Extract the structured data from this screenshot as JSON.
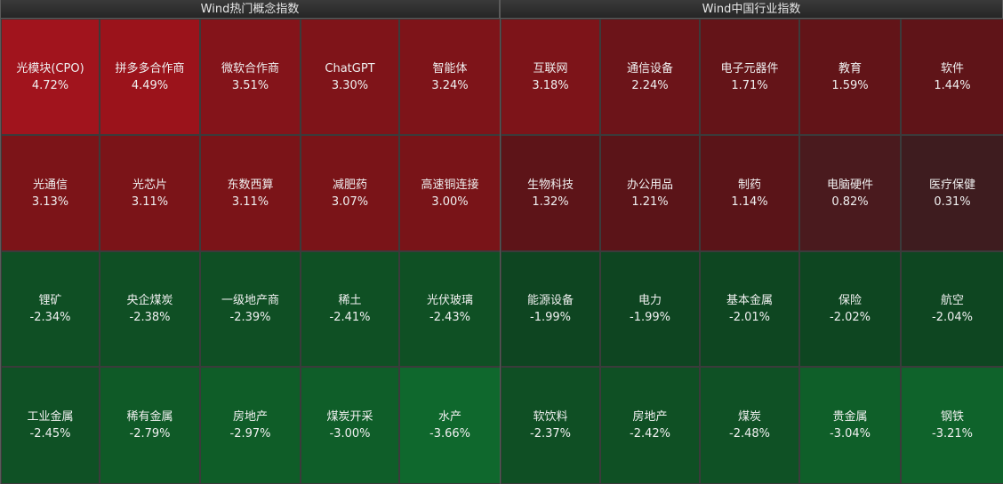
{
  "panels": [
    {
      "id": "left",
      "title": "Wind热门概念指数",
      "rows": [
        [
          {
            "name": "光模块(CPO)",
            "pct": "4.72%",
            "color": "#a1141d"
          },
          {
            "name": "拼多多合作商",
            "pct": "4.49%",
            "color": "#9b131b"
          },
          {
            "name": "微软合作商",
            "pct": "3.51%",
            "color": "#84141a"
          },
          {
            "name": "ChatGPT",
            "pct": "3.30%",
            "color": "#7f1419"
          },
          {
            "name": "智能体",
            "pct": "3.24%",
            "color": "#7e1419"
          }
        ],
        [
          {
            "name": "光通信",
            "pct": "3.13%",
            "color": "#7c1418"
          },
          {
            "name": "光芯片",
            "pct": "3.11%",
            "color": "#7b1418"
          },
          {
            "name": "东数西算",
            "pct": "3.11%",
            "color": "#7b1418"
          },
          {
            "name": "减肥药",
            "pct": "3.07%",
            "color": "#7a1418"
          },
          {
            "name": "高速铜连接",
            "pct": "3.00%",
            "color": "#791418"
          }
        ],
        [
          {
            "name": "锂矿",
            "pct": "-2.34%",
            "color": "#0f4f24"
          },
          {
            "name": "央企煤炭",
            "pct": "-2.38%",
            "color": "#0f4f24"
          },
          {
            "name": "一级地产商",
            "pct": "-2.39%",
            "color": "#0f4f24"
          },
          {
            "name": "稀土",
            "pct": "-2.41%",
            "color": "#0f5024"
          },
          {
            "name": "光伏玻璃",
            "pct": "-2.43%",
            "color": "#0f5024"
          }
        ],
        [
          {
            "name": "工业金属",
            "pct": "-2.45%",
            "color": "#0f5125"
          },
          {
            "name": "稀有金属",
            "pct": "-2.79%",
            "color": "#0f5a27"
          },
          {
            "name": "房地产",
            "pct": "-2.97%",
            "color": "#0f5d28"
          },
          {
            "name": "煤炭开采",
            "pct": "-3.00%",
            "color": "#0f5e29"
          },
          {
            "name": "水产",
            "pct": "-3.66%",
            "color": "#0f682d"
          }
        ]
      ]
    },
    {
      "id": "right",
      "title": "Wind中国行业指数",
      "rows": [
        [
          {
            "name": "互联网",
            "pct": "3.18%",
            "color": "#7d1419"
          },
          {
            "name": "通信设备",
            "pct": "2.24%",
            "color": "#6c1419"
          },
          {
            "name": "电子元器件",
            "pct": "1.71%",
            "color": "#641418"
          },
          {
            "name": "教育",
            "pct": "1.59%",
            "color": "#621418"
          },
          {
            "name": "软件",
            "pct": "1.44%",
            "color": "#5f1418"
          }
        ],
        [
          {
            "name": "生物科技",
            "pct": "1.32%",
            "color": "#5d1418"
          },
          {
            "name": "办公用品",
            "pct": "1.21%",
            "color": "#5b1418"
          },
          {
            "name": "制药",
            "pct": "1.14%",
            "color": "#5a1418"
          },
          {
            "name": "电脑硬件",
            "pct": "0.82%",
            "color": "#4a1a1e"
          },
          {
            "name": "医疗保健",
            "pct": "0.31%",
            "color": "#3e1c1f"
          }
        ],
        [
          {
            "name": "能源设备",
            "pct": "-1.99%",
            "color": "#0e4521"
          },
          {
            "name": "电力",
            "pct": "-1.99%",
            "color": "#0e4521"
          },
          {
            "name": "基本金属",
            "pct": "-2.01%",
            "color": "#0e4621"
          },
          {
            "name": "保险",
            "pct": "-2.02%",
            "color": "#0e4621"
          },
          {
            "name": "航空",
            "pct": "-2.04%",
            "color": "#0e4621"
          }
        ],
        [
          {
            "name": "软饮料",
            "pct": "-2.37%",
            "color": "#0f4f24"
          },
          {
            "name": "房地产",
            "pct": "-2.42%",
            "color": "#0f5024"
          },
          {
            "name": "煤炭",
            "pct": "-2.48%",
            "color": "#0f5125"
          },
          {
            "name": "贵金属",
            "pct": "-3.04%",
            "color": "#0f5f29"
          },
          {
            "name": "钢铁",
            "pct": "-3.21%",
            "color": "#0f632b"
          }
        ]
      ]
    }
  ]
}
